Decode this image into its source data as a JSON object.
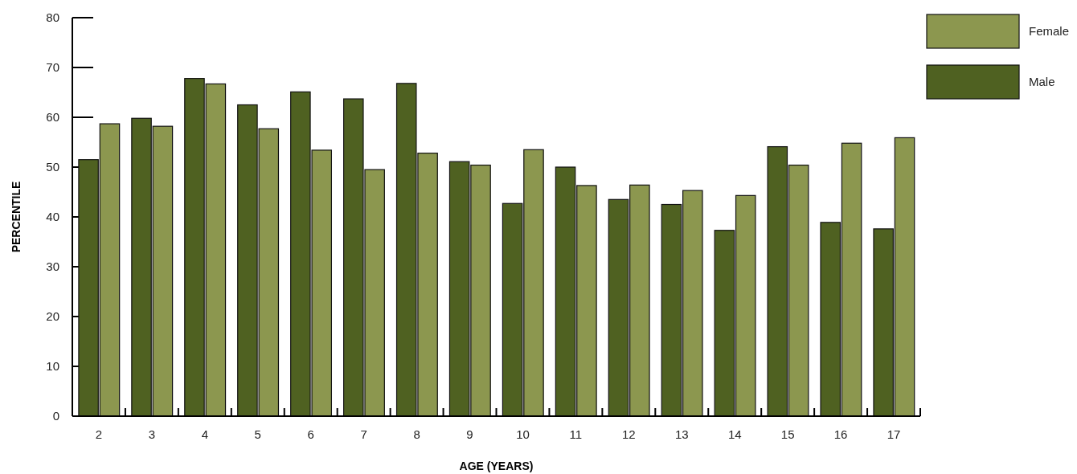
{
  "chart_data": {
    "type": "bar",
    "xlabel": "AGE (YEARS)",
    "ylabel": "PERCENTILE",
    "categories": [
      "2",
      "3",
      "4",
      "5",
      "6",
      "7",
      "8",
      "9",
      "10",
      "11",
      "12",
      "13",
      "14",
      "15",
      "16",
      "17"
    ],
    "series": [
      {
        "name": "Male",
        "color": "#4f6121",
        "values": [
          51.5,
          59.8,
          67.8,
          62.5,
          65.1,
          63.7,
          66.8,
          51.1,
          42.7,
          50.0,
          43.5,
          42.5,
          37.3,
          54.1,
          38.9,
          37.6
        ]
      },
      {
        "name": "Female",
        "color": "#8c974f",
        "values": [
          58.7,
          58.2,
          66.7,
          57.7,
          53.4,
          49.5,
          52.8,
          50.4,
          53.5,
          46.3,
          46.4,
          45.3,
          44.3,
          50.4,
          54.8,
          55.9
        ]
      }
    ],
    "ylim": [
      0,
      80
    ],
    "yticks": [
      0,
      10,
      20,
      30,
      40,
      50,
      60,
      70,
      80
    ],
    "legend": "top right",
    "grid": false
  }
}
